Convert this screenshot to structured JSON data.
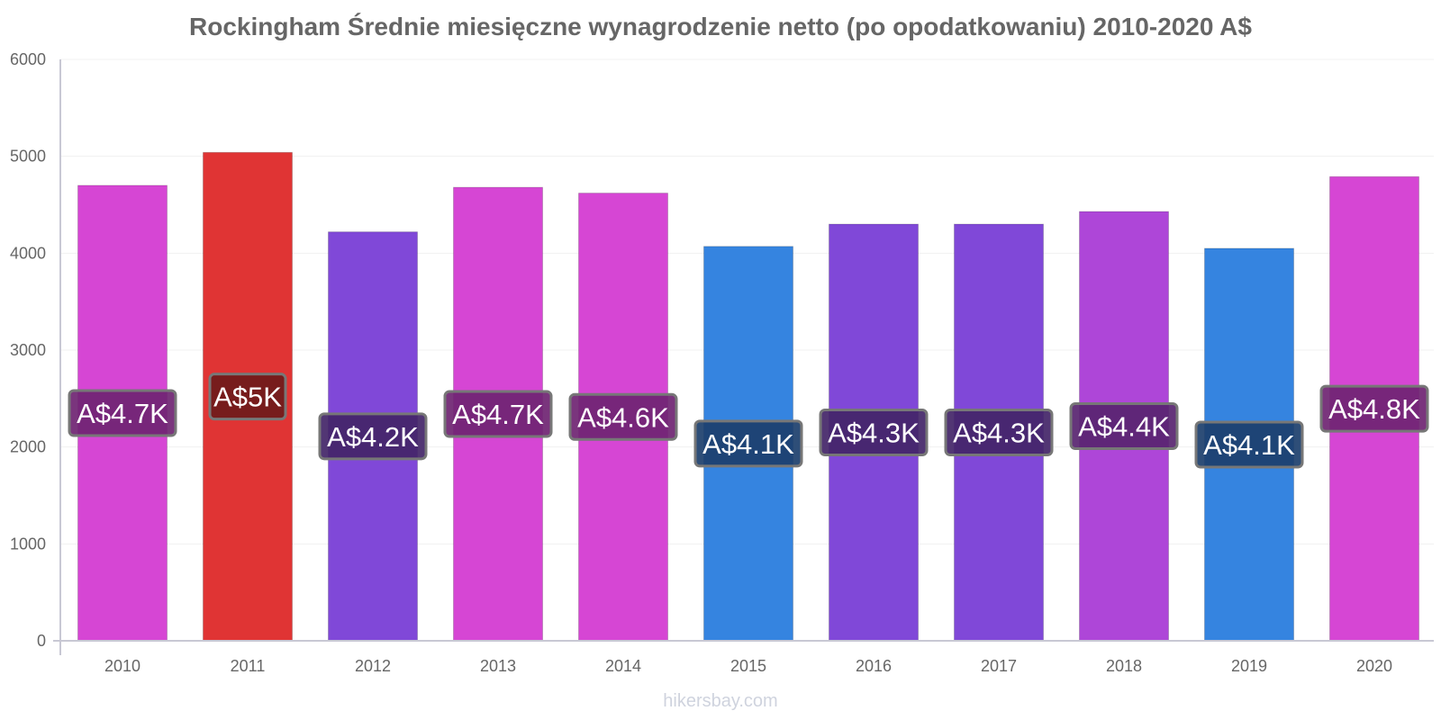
{
  "chart_data": {
    "type": "bar",
    "title": "Rockingham Średnie miesięczne wynagrodzenie netto (po opodatkowaniu) 2010-2020 A$",
    "xlabel": "",
    "ylabel": "",
    "ylim": [
      0,
      6000
    ],
    "y_ticks": [
      0,
      1000,
      2000,
      3000,
      4000,
      5000,
      6000
    ],
    "grid": true,
    "categories": [
      "2010",
      "2011",
      "2012",
      "2013",
      "2014",
      "2015",
      "2016",
      "2017",
      "2018",
      "2019",
      "2020"
    ],
    "values": [
      4700,
      5040,
      4220,
      4680,
      4620,
      4070,
      4300,
      4300,
      4430,
      4050,
      4790
    ],
    "data_labels": [
      "A$4.7K",
      "A$5K",
      "A$4.2K",
      "A$4.7K",
      "A$4.6K",
      "A$4.1K",
      "A$4.3K",
      "A$4.3K",
      "A$4.4K",
      "A$4.1K",
      "A$4.8K"
    ],
    "bar_colors": [
      "#d646d4",
      "#e03434",
      "#8048d8",
      "#d646d4",
      "#d646d4",
      "#3584e0",
      "#8048d8",
      "#8048d8",
      "#ae46d8",
      "#3584e0",
      "#d646d4"
    ],
    "label_box_colors": [
      "#6f2472",
      "#6e1a1a",
      "#432568",
      "#6f2472",
      "#6f2472",
      "#1c3f6c",
      "#432568",
      "#432568",
      "#582470",
      "#1c3f6c",
      "#6f2472"
    ]
  },
  "watermark": "hikersbay.com"
}
